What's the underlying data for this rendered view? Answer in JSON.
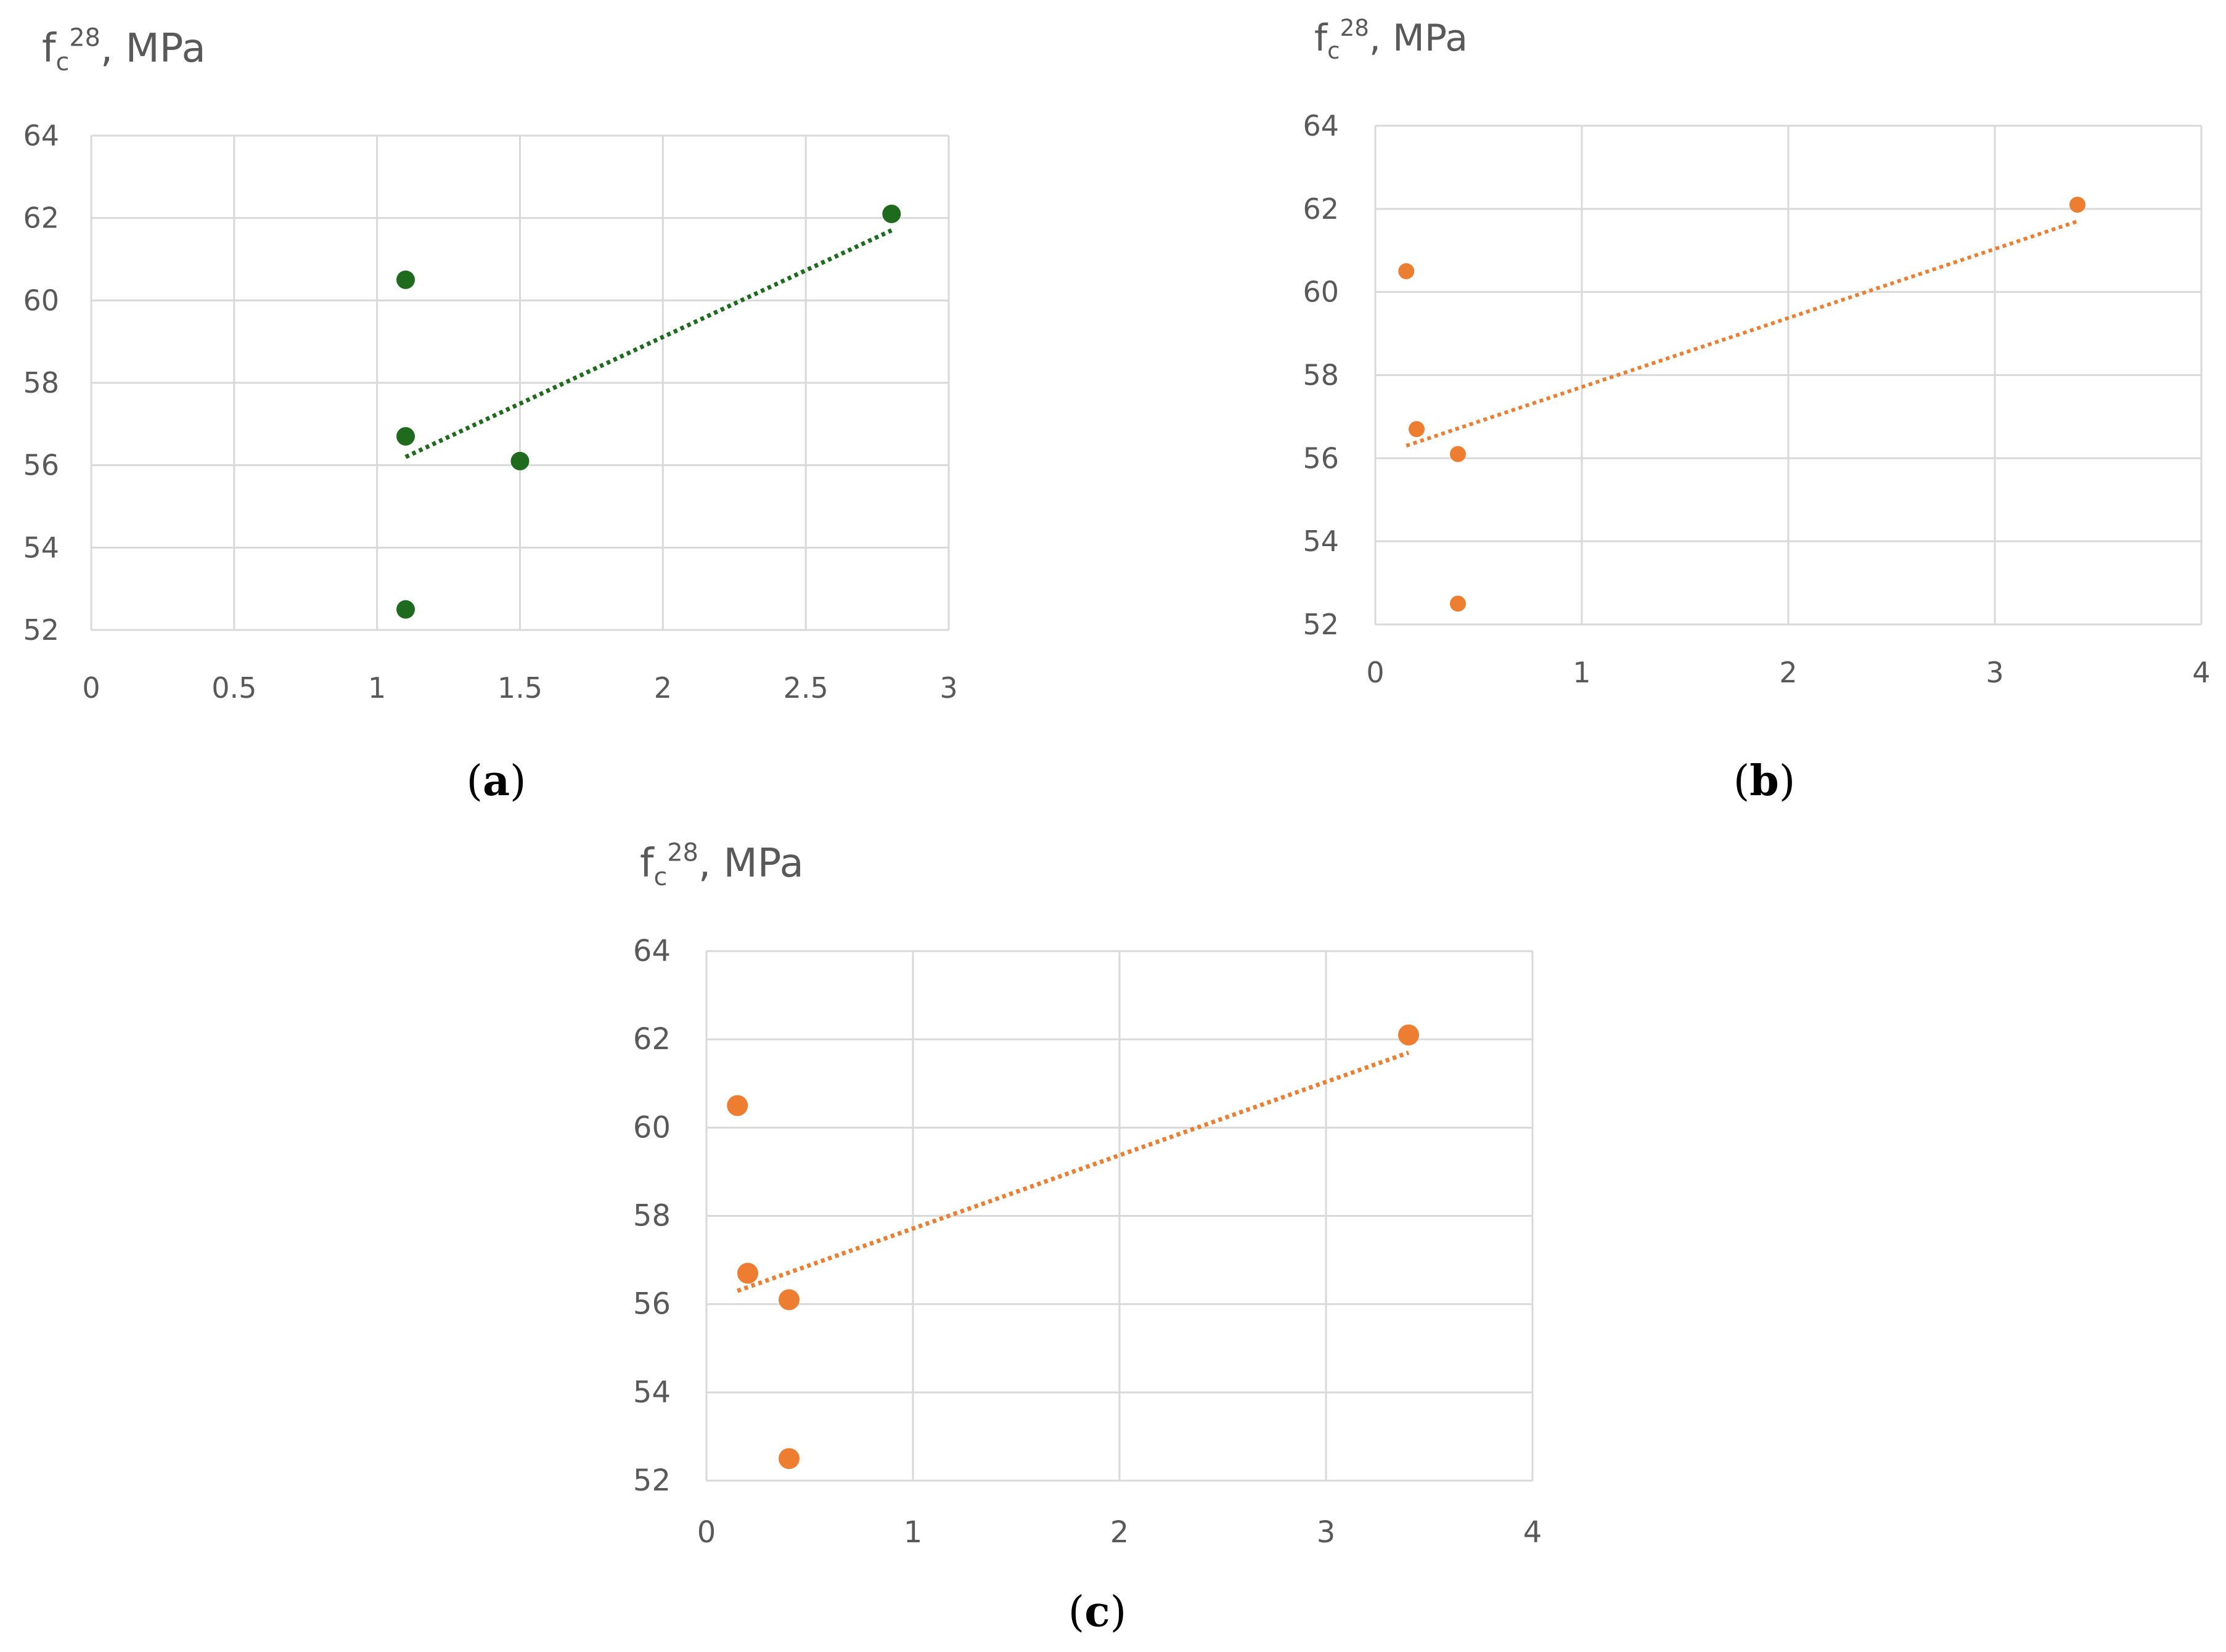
{
  "chart_data": [
    {
      "panel": "a",
      "panel_label": {
        "open": "(",
        "letter": "a",
        "close": ")"
      },
      "type": "scatter",
      "ylabel": {
        "base": "f",
        "sub": "c",
        "sup": "28",
        "unit": ", MPa"
      },
      "xlim": [
        0,
        3
      ],
      "ylim": [
        52,
        64
      ],
      "xticks": [
        0,
        0.5,
        1,
        1.5,
        2,
        2.5,
        3
      ],
      "yticks": [
        52,
        54,
        56,
        58,
        60,
        62,
        64
      ],
      "grid": true,
      "color": "#1e6b1e",
      "points": [
        {
          "x": 1.1,
          "y": 60.5
        },
        {
          "x": 1.1,
          "y": 56.7
        },
        {
          "x": 1.5,
          "y": 56.1
        },
        {
          "x": 1.1,
          "y": 52.5
        },
        {
          "x": 2.8,
          "y": 62.1
        }
      ],
      "trendline": {
        "style": "dotted",
        "x_start": 1.1,
        "y_start": 56.2,
        "x_end": 2.8,
        "y_end": 61.7
      }
    },
    {
      "panel": "b",
      "panel_label": {
        "open": "(",
        "letter": "b",
        "close": ")"
      },
      "type": "scatter",
      "ylabel": {
        "base": "f",
        "sub": "c",
        "sup": "28",
        "unit": ", MPa"
      },
      "xlim": [
        0,
        4
      ],
      "ylim": [
        52,
        64
      ],
      "xticks": [
        0,
        1,
        2,
        3,
        4
      ],
      "yticks": [
        52,
        54,
        56,
        58,
        60,
        62,
        64
      ],
      "grid": true,
      "color": "#ed7d31",
      "points": [
        {
          "x": 0.15,
          "y": 60.5
        },
        {
          "x": 0.2,
          "y": 56.7
        },
        {
          "x": 0.4,
          "y": 56.1
        },
        {
          "x": 0.4,
          "y": 52.5
        },
        {
          "x": 3.4,
          "y": 62.1
        }
      ],
      "trendline": {
        "style": "dotted",
        "x_start": 0.15,
        "y_start": 56.3,
        "x_end": 3.4,
        "y_end": 61.7
      }
    },
    {
      "panel": "c",
      "panel_label": {
        "open": "(",
        "letter": "c",
        "close": ")"
      },
      "type": "scatter",
      "ylabel": {
        "base": "f",
        "sub": "c",
        "sup": "28",
        "unit": ", MPa"
      },
      "xlim": [
        0,
        4
      ],
      "ylim": [
        52,
        64
      ],
      "xticks": [
        0,
        1,
        2,
        3,
        4
      ],
      "yticks": [
        52,
        54,
        56,
        58,
        60,
        62,
        64
      ],
      "grid": true,
      "color": "#ed7d31",
      "points": [
        {
          "x": 0.15,
          "y": 60.5
        },
        {
          "x": 0.2,
          "y": 56.7
        },
        {
          "x": 0.4,
          "y": 56.1
        },
        {
          "x": 0.4,
          "y": 52.5
        },
        {
          "x": 3.4,
          "y": 62.1
        }
      ],
      "trendline": {
        "style": "dotted",
        "x_start": 0.15,
        "y_start": 56.3,
        "x_end": 3.4,
        "y_end": 61.7
      }
    }
  ]
}
